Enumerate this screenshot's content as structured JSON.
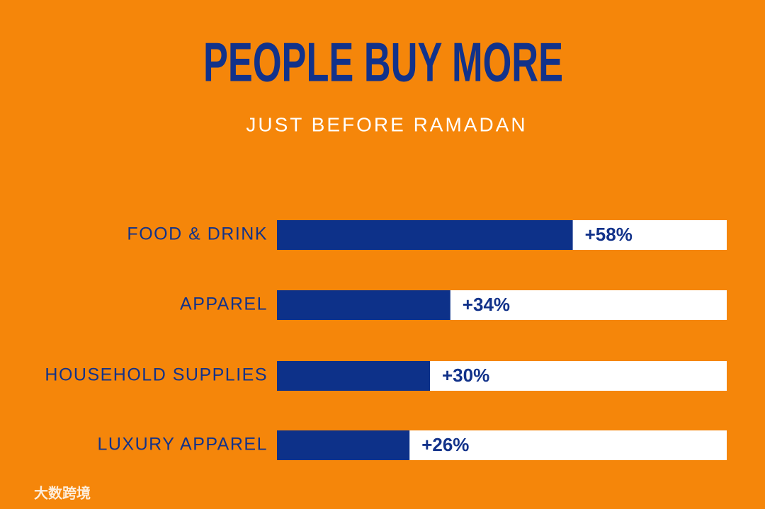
{
  "chart_data": {
    "type": "bar",
    "orientation": "horizontal",
    "title": "PEOPLE BUY MORE",
    "subtitle": "JUST BEFORE RAMADAN",
    "categories": [
      "FOOD & DRINK",
      "APPAREL",
      "HOUSEHOLD SUPPLIES",
      "LUXURY APPAREL"
    ],
    "values": [
      58,
      34,
      30,
      26
    ],
    "value_labels": [
      "+58%",
      "+34%",
      "+30%",
      "+26%"
    ],
    "color": "#0d3189",
    "watermark": "大数跨境"
  }
}
